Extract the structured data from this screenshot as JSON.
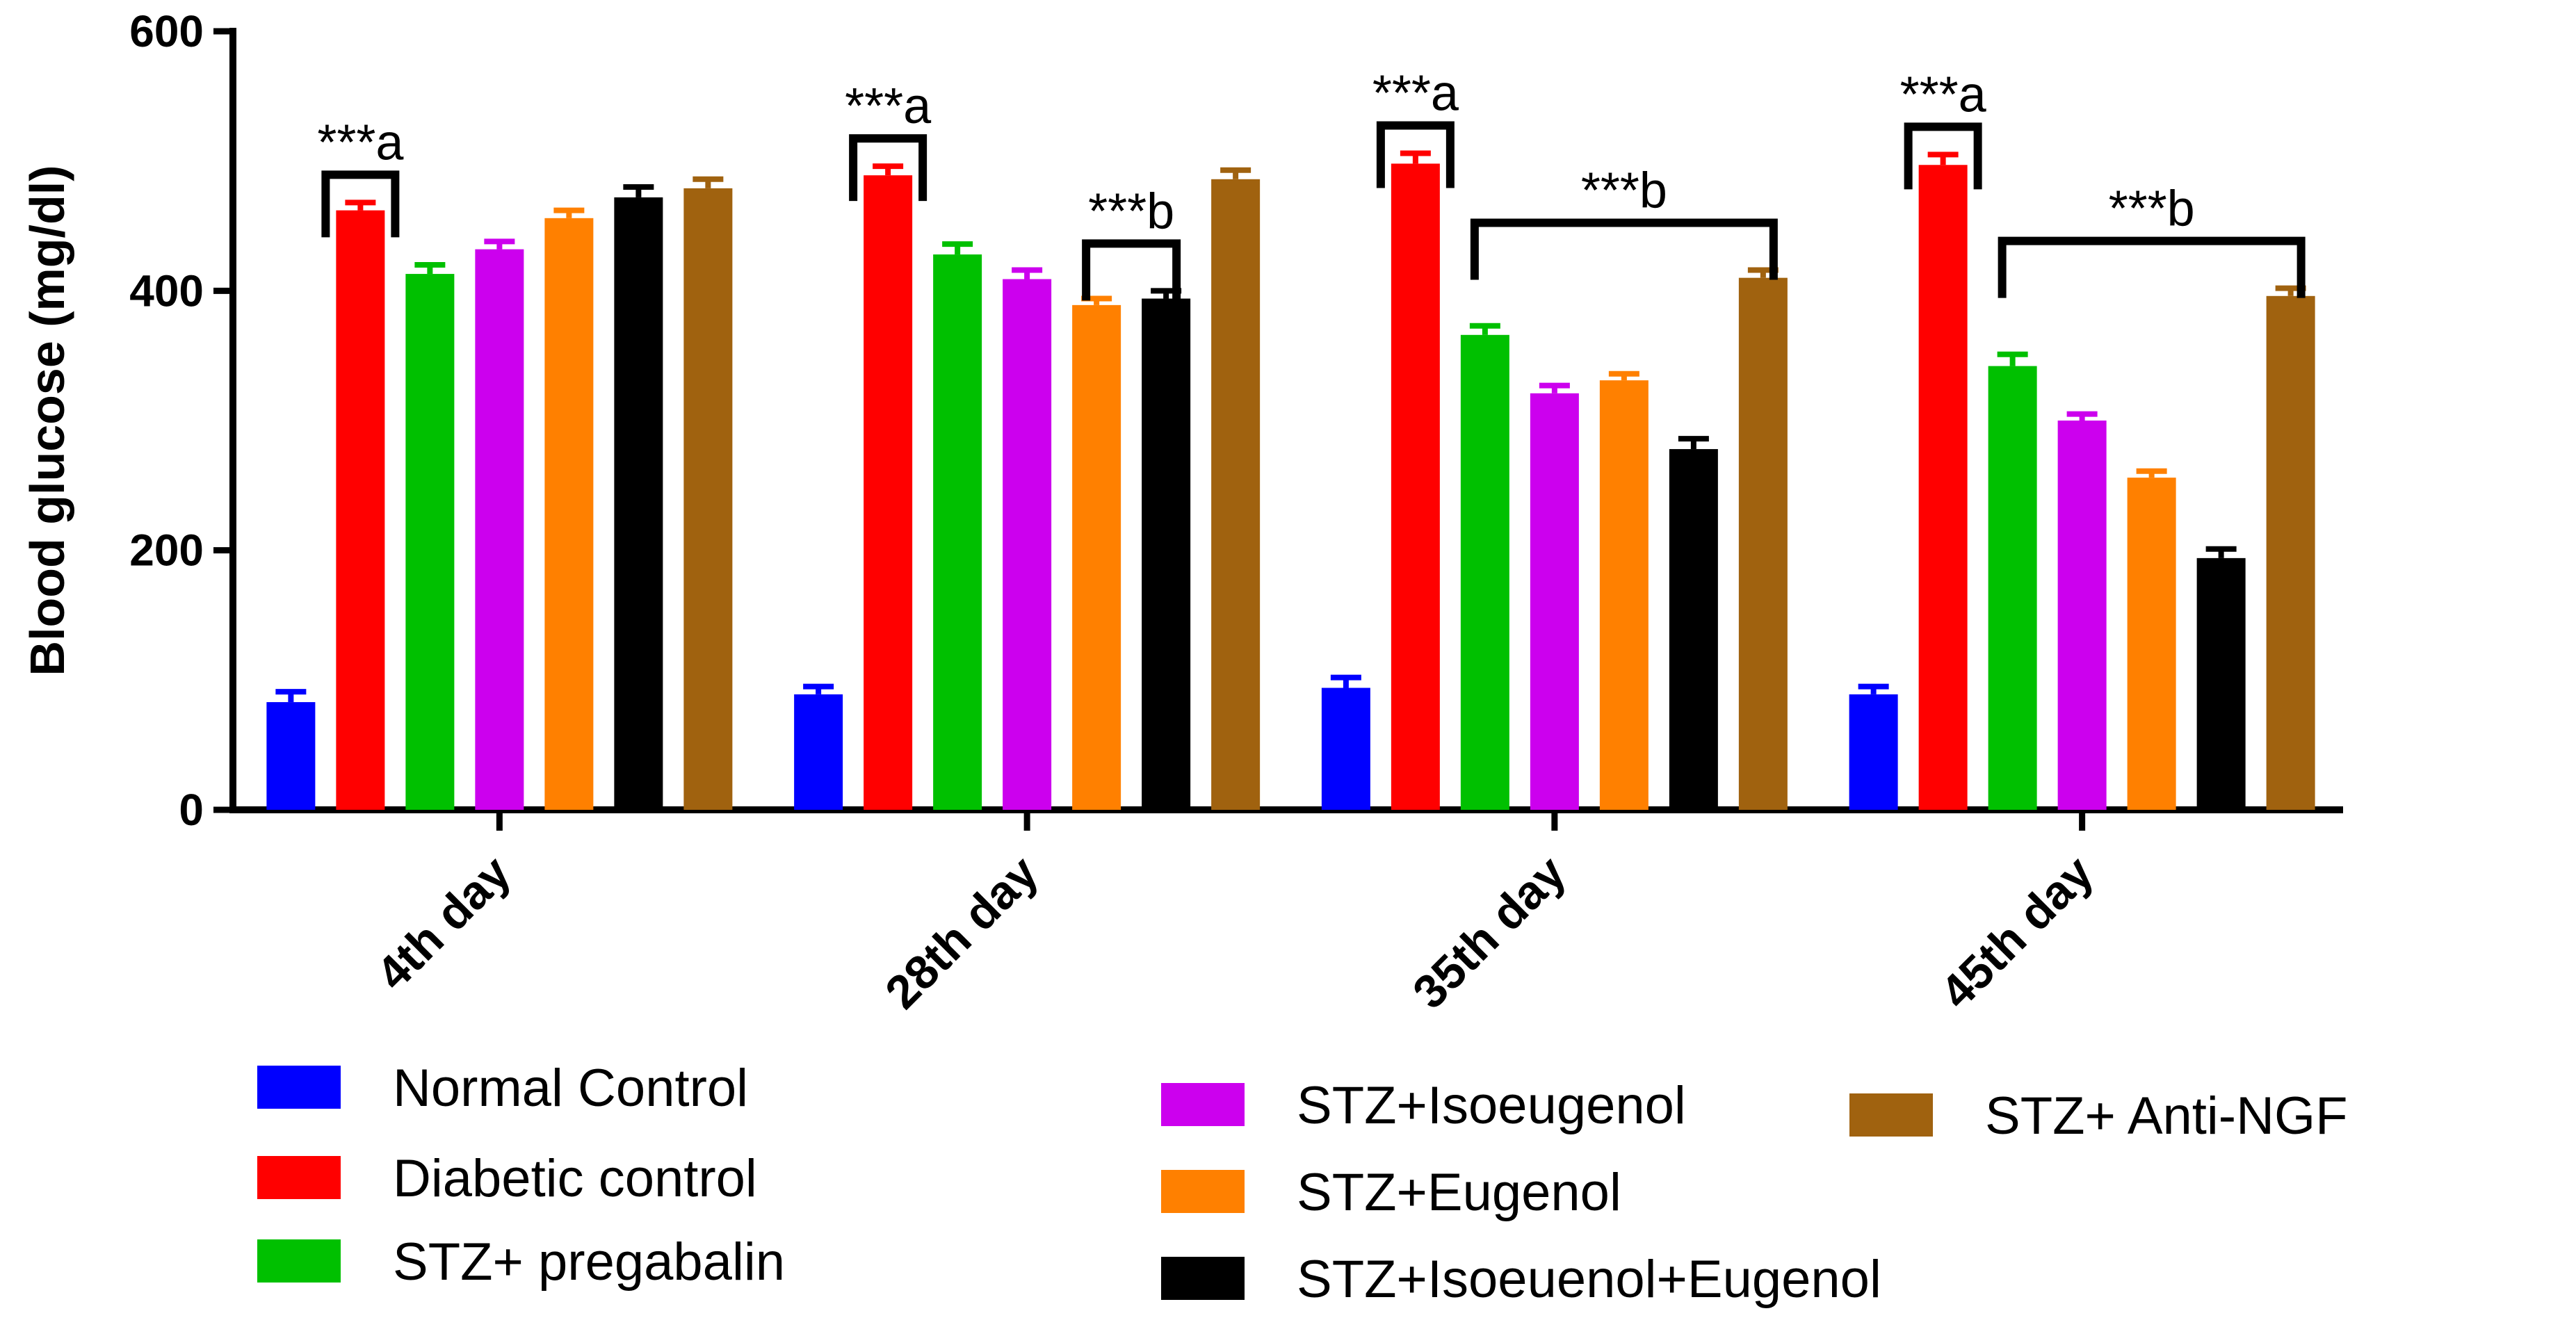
{
  "chart_data": {
    "type": "bar",
    "ylabel": "Blood glucose (mg/dl)",
    "xlabel": "",
    "ylim": [
      0,
      600
    ],
    "yticks": [
      0,
      200,
      400,
      600
    ],
    "categories": [
      "4th day",
      "28th day",
      "35th day",
      "45th day"
    ],
    "series": [
      {
        "name": "Normal Control",
        "color": "#0000ff",
        "values": [
          83,
          89,
          94,
          89
        ],
        "errors": [
          8,
          6,
          8,
          6
        ]
      },
      {
        "name": "Diabetic control",
        "color": "#ff0000",
        "values": [
          462,
          489,
          498,
          497
        ],
        "errors": [
          6,
          7,
          8,
          8
        ]
      },
      {
        "name": "STZ+ pregabalin",
        "color": "#00c000",
        "values": [
          413,
          428,
          366,
          342
        ],
        "errors": [
          7,
          8,
          7,
          9
        ]
      },
      {
        "name": "STZ+Isoeugenol",
        "color": "#cc00ee",
        "values": [
          432,
          409,
          321,
          300
        ],
        "errors": [
          6,
          7,
          6,
          5
        ]
      },
      {
        "name": "STZ+Eugenol",
        "color": "#ff8000",
        "values": [
          456,
          389,
          331,
          256
        ],
        "errors": [
          6,
          5,
          5,
          5
        ]
      },
      {
        "name": "STZ+Isoeuenol+Eugenol",
        "color": "#000000",
        "values": [
          472,
          394,
          278,
          194
        ],
        "errors": [
          8,
          6,
          8,
          7
        ]
      },
      {
        "name": "STZ+ Anti-NGF",
        "color": "#a0620f",
        "values": [
          479,
          486,
          410,
          396
        ],
        "errors": [
          7,
          7,
          6,
          6
        ]
      }
    ],
    "annotations": [
      {
        "category": 0,
        "text": "***a",
        "from_series": 1,
        "to_series": 1
      },
      {
        "category": 1,
        "text": "***a",
        "from_series": 1,
        "to_series": 1
      },
      {
        "category": 1,
        "text": "***b",
        "from_series": 4,
        "to_series": 5
      },
      {
        "category": 2,
        "text": "***a",
        "from_series": 1,
        "to_series": 1
      },
      {
        "category": 2,
        "text": "***b",
        "from_series": 2,
        "to_series": 6
      },
      {
        "category": 3,
        "text": "***a",
        "from_series": 1,
        "to_series": 1
      },
      {
        "category": 3,
        "text": "***b",
        "from_series": 2,
        "to_series": 6
      }
    ],
    "legend_position": "bottom",
    "grid": false
  }
}
